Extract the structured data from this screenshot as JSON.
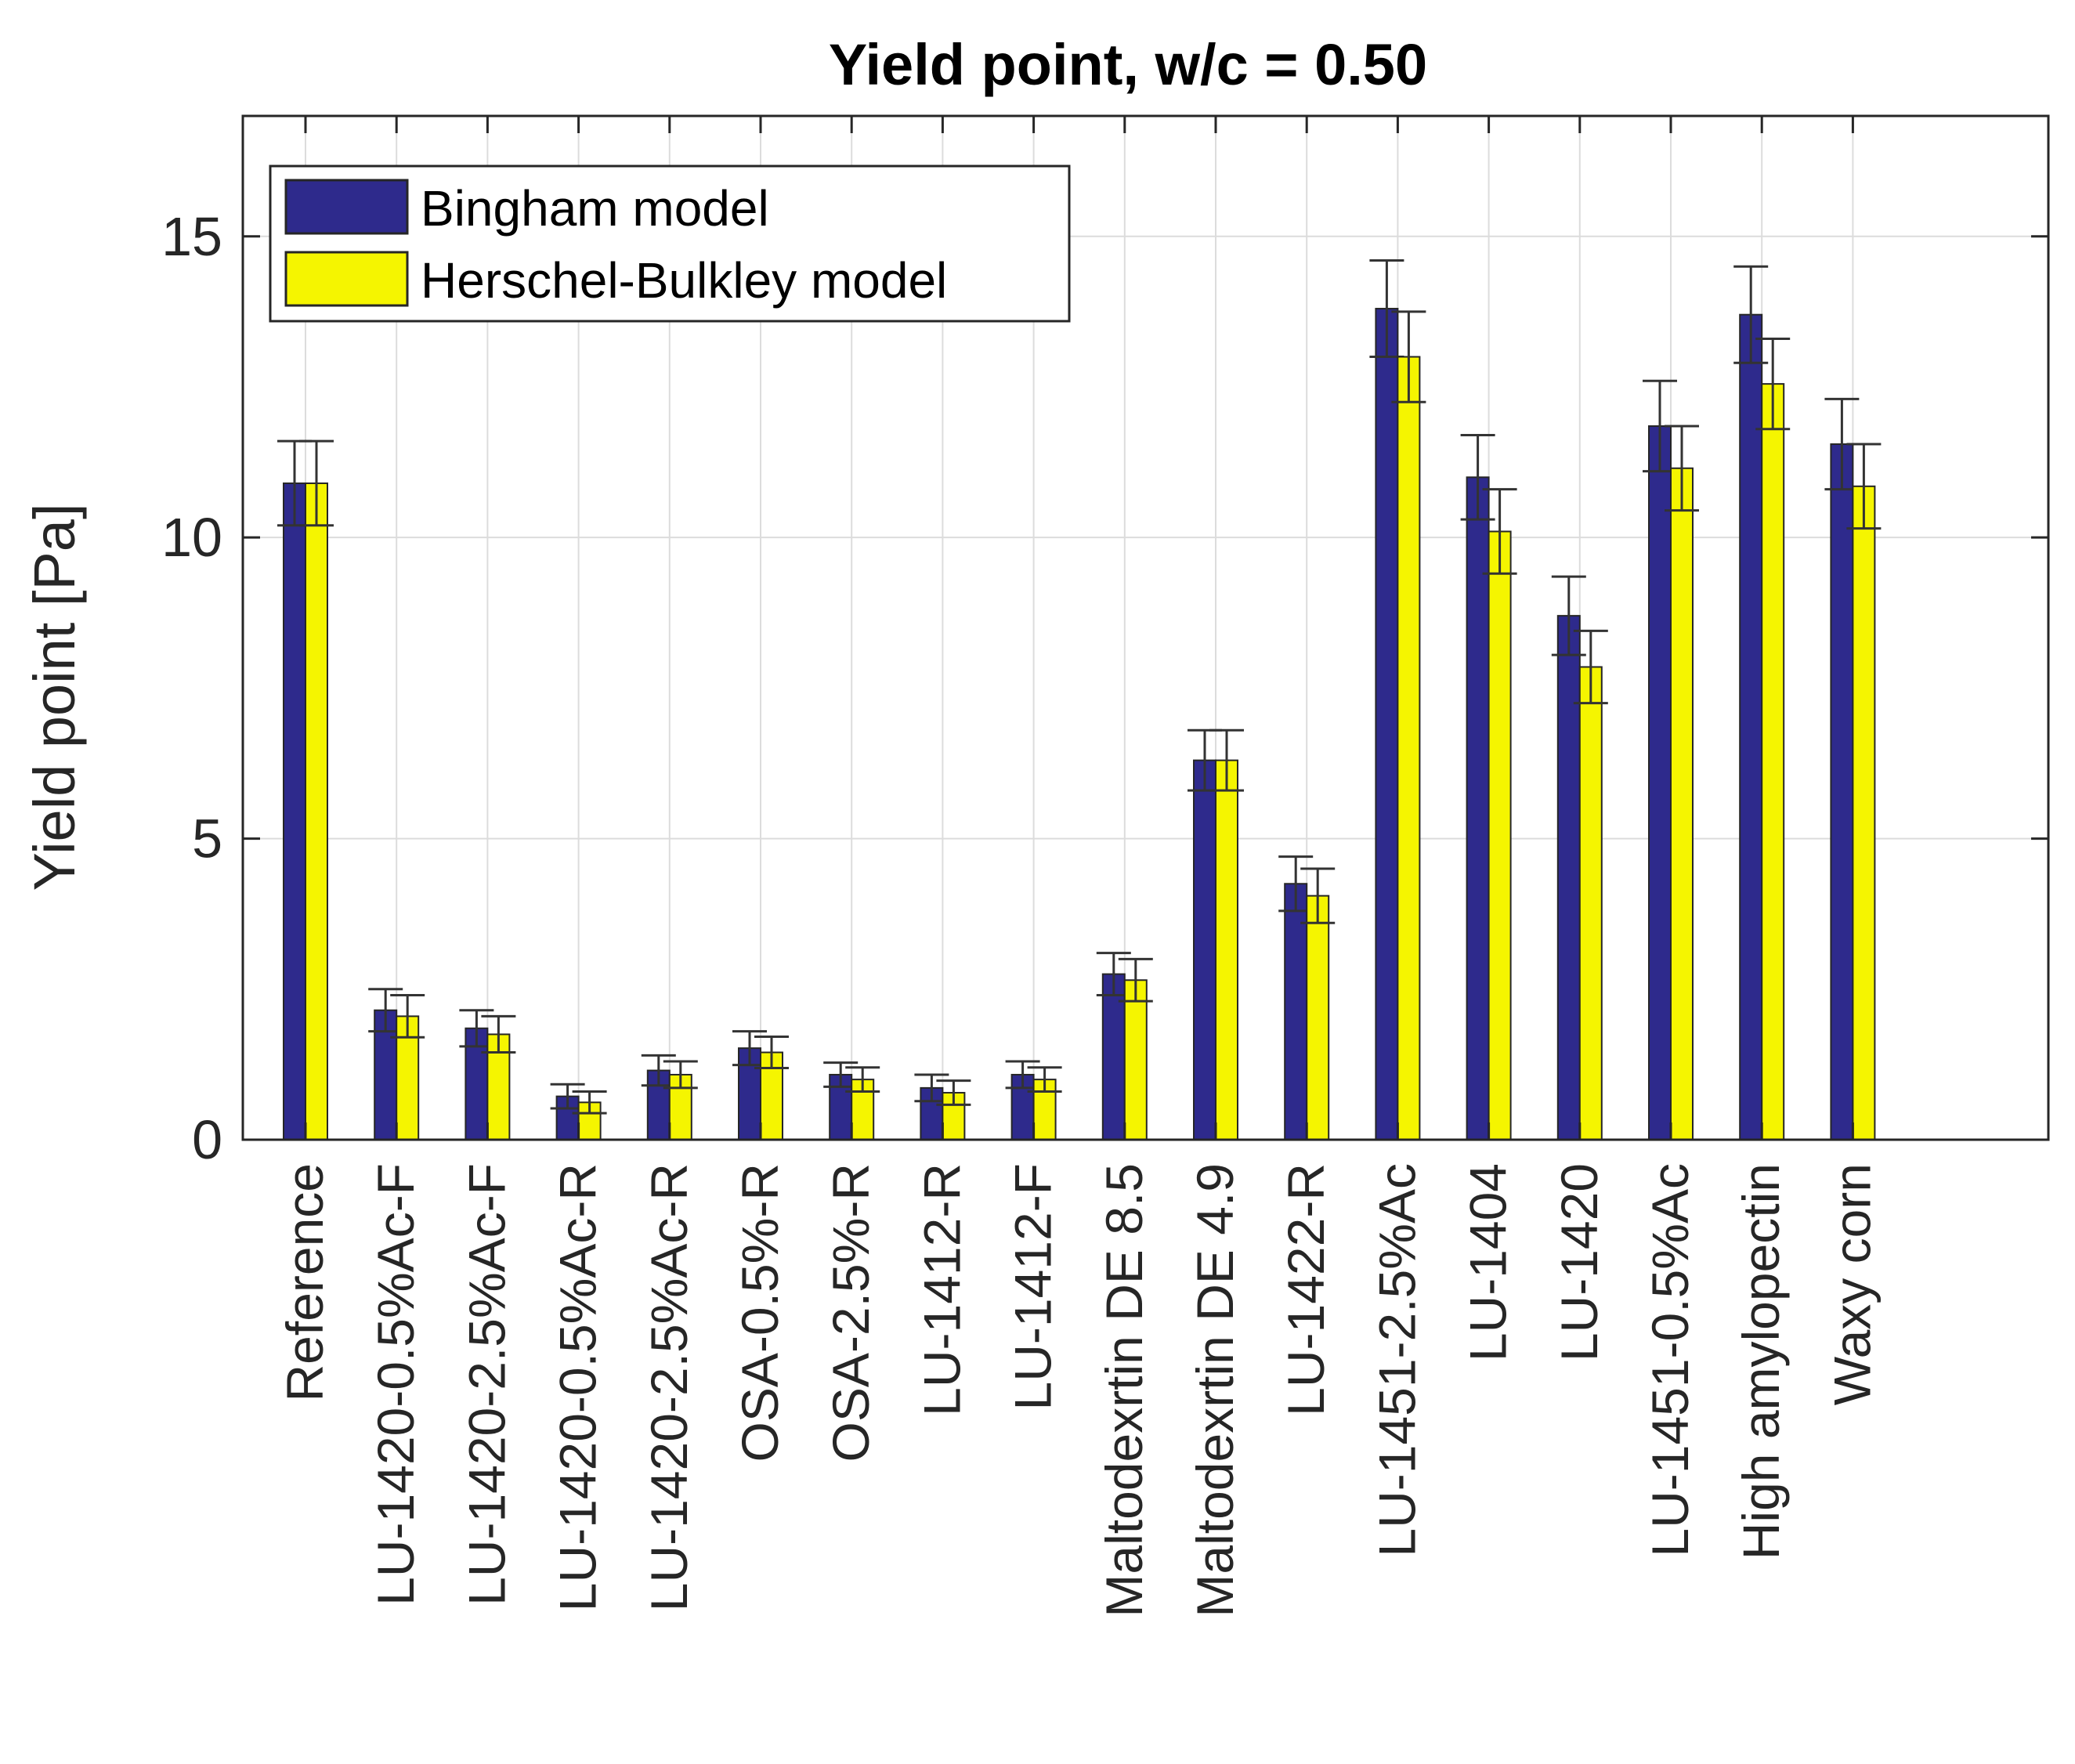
{
  "chart_data": {
    "type": "bar",
    "title": "Yield point, w/c = 0.50",
    "xlabel": "",
    "ylabel": "Yield point [Pa]",
    "ylim": [
      0,
      17
    ],
    "yticks": [
      0,
      5,
      10,
      15
    ],
    "grid": true,
    "legend_position": "top-left",
    "categories": [
      "Reference",
      "LU-1420-0.5%Ac-F",
      "LU-1420-2.5%Ac-F",
      "LU-1420-0.5%Ac-R",
      "LU-1420-2.5%Ac-R",
      "OSA-0.5%-R",
      "OSA-2.5%-R",
      "LU-1412-R",
      "LU-1412-F",
      "Maltodexrtin DE 8.5",
      "Maltodexrtin DE 4.9",
      "LU-1422-R",
      "LU-1451-2.5%Ac",
      "LU-1404",
      "LU-1420",
      "LU-1451-0.5%Ac",
      "High amylopectin",
      "Waxy corn"
    ],
    "series": [
      {
        "name": "Bingham model",
        "color": "#2e2a8c",
        "values": [
          10.9,
          2.15,
          1.85,
          0.72,
          1.15,
          1.52,
          1.08,
          0.86,
          1.08,
          2.75,
          6.3,
          4.25,
          13.8,
          11.0,
          8.7,
          11.85,
          13.7,
          11.55
        ],
        "errors": [
          0.7,
          0.35,
          0.3,
          0.2,
          0.25,
          0.28,
          0.2,
          0.22,
          0.22,
          0.35,
          0.5,
          0.45,
          0.8,
          0.7,
          0.65,
          0.75,
          0.8,
          0.75
        ]
      },
      {
        "name": "Herschel-Bulkley model",
        "color": "#f5f500",
        "values": [
          10.9,
          2.05,
          1.75,
          0.62,
          1.08,
          1.45,
          1.0,
          0.78,
          1.0,
          2.65,
          6.3,
          4.05,
          13.0,
          10.1,
          7.85,
          11.15,
          12.55,
          10.85
        ],
        "errors": [
          0.7,
          0.35,
          0.3,
          0.18,
          0.22,
          0.26,
          0.2,
          0.2,
          0.2,
          0.35,
          0.5,
          0.45,
          0.75,
          0.7,
          0.6,
          0.7,
          0.75,
          0.7
        ]
      }
    ]
  }
}
